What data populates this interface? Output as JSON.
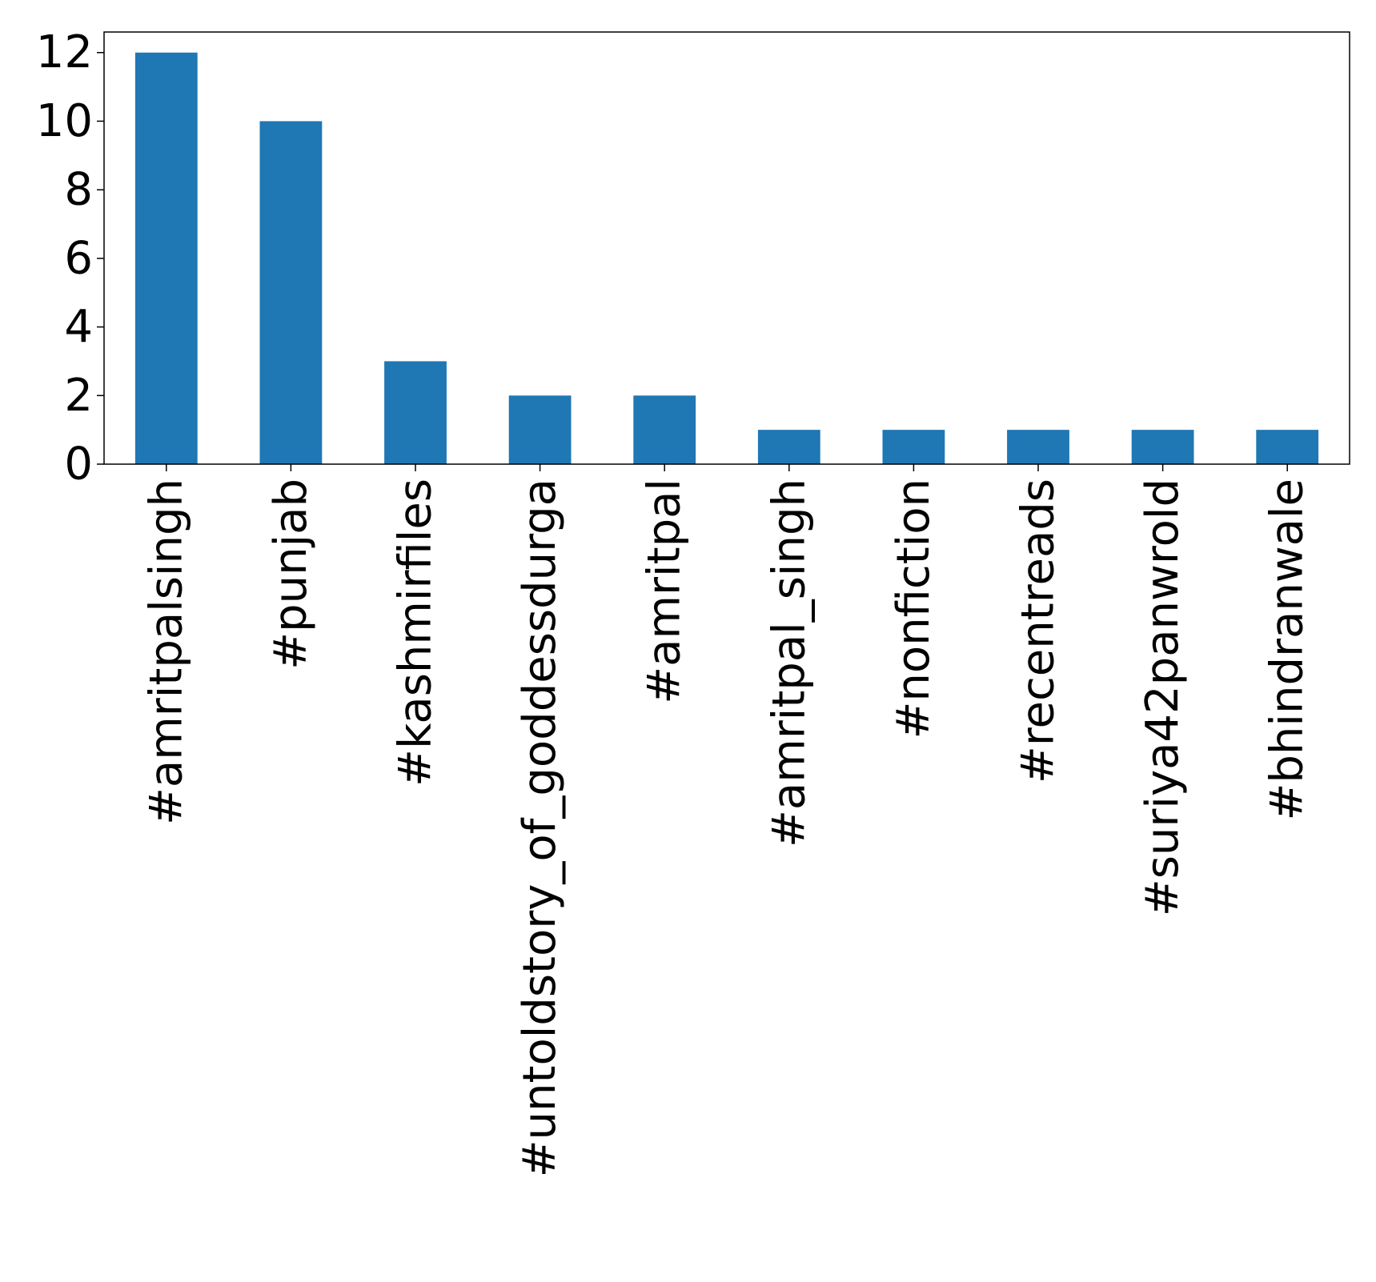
{
  "chart_data": {
    "type": "bar",
    "title": "",
    "xlabel": "",
    "ylabel": "",
    "categories": [
      "#amritpalsingh",
      "#punjab",
      "#kashmirfiles",
      "#untoldstory_of_goddessdurga",
      "#amritpal",
      "#amritpal_singh",
      "#nonfiction",
      "#recentreads",
      "#suriya42panwrold",
      "#bhindranwale"
    ],
    "values": [
      12,
      10,
      3,
      2,
      2,
      1,
      1,
      1,
      1,
      1
    ],
    "ylim": [
      0,
      12.6
    ],
    "yticks": [
      0,
      2,
      4,
      6,
      8,
      10,
      12
    ],
    "grid": false,
    "legend": "none",
    "colors": {
      "bar": "#1f77b4"
    }
  }
}
